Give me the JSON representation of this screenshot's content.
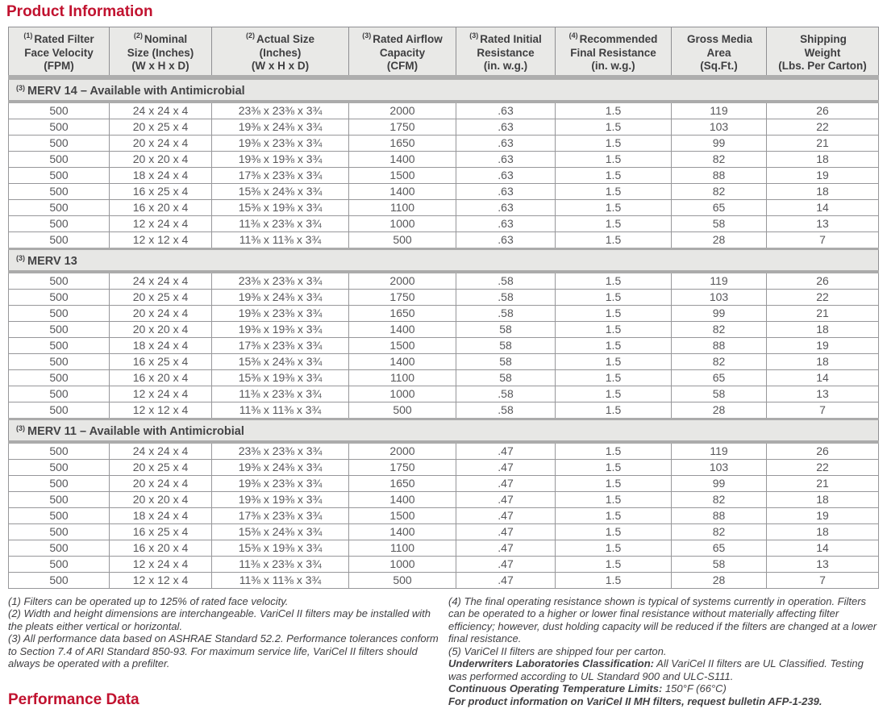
{
  "page": {
    "title": "Product Information",
    "footer_title": "Performance Data"
  },
  "colors": {
    "accent_red": "#c1122f",
    "header_bg": "#e9e9e7",
    "band_bg": "#e7e7e5",
    "shadow_gray": "#aeaeae",
    "border_gray": "#8f8f92",
    "text_gray": "#57575a"
  },
  "table": {
    "columns": [
      {
        "sup": "(1)",
        "lines": [
          "Rated Filter",
          "Face Velocity",
          "(FPM)"
        ]
      },
      {
        "sup": "(2)",
        "lines": [
          "Nominal",
          "Size (Inches)",
          "(W x H x D)"
        ]
      },
      {
        "sup": "(2)",
        "lines": [
          "Actual Size",
          "(Inches)",
          "(W x H x D)"
        ]
      },
      {
        "sup": "(3)",
        "lines": [
          "Rated Airflow",
          "Capacity",
          "(CFM)"
        ]
      },
      {
        "sup": "(3)",
        "lines": [
          "Rated Initial",
          "Resistance",
          "(in. w.g.)"
        ]
      },
      {
        "sup": "(4)",
        "lines": [
          "Recommended",
          "Final Resistance",
          "(in. w.g.)"
        ]
      },
      {
        "sup": "",
        "lines": [
          "Gross Media",
          "Area",
          "(Sq.Ft.)"
        ]
      },
      {
        "sup": "",
        "lines": [
          "Shipping",
          "Weight",
          "(Lbs. Per Carton)"
        ]
      }
    ],
    "sections": [
      {
        "sup": "(3)",
        "title": "MERV 14 – Available with Antimicrobial",
        "rows": [
          [
            "500",
            "24 x 24 x 4",
            "23⅜ x 23⅜ x 3¾",
            "2000",
            ".63",
            "1.5",
            "119",
            "26"
          ],
          [
            "500",
            "20 x 25 x 4",
            "19⅜ x 24⅜ x 3¾",
            "1750",
            ".63",
            "1.5",
            "103",
            "22"
          ],
          [
            "500",
            "20 x 24 x 4",
            "19⅜ x 23⅜ x 3¾",
            "1650",
            ".63",
            "1.5",
            "99",
            "21"
          ],
          [
            "500",
            "20 x 20 x 4",
            "19⅜ x 19⅜ x 3¾",
            "1400",
            ".63",
            "1.5",
            "82",
            "18"
          ],
          [
            "500",
            "18 x 24 x 4",
            "17⅜ x 23⅜ x 3¾",
            "1500",
            ".63",
            "1.5",
            "88",
            "19"
          ],
          [
            "500",
            "16 x 25 x 4",
            "15⅜ x 24⅜ x 3¾",
            "1400",
            ".63",
            "1.5",
            "82",
            "18"
          ],
          [
            "500",
            "16 x 20 x 4",
            "15⅜ x 19⅜ x 3¾",
            "1100",
            ".63",
            "1.5",
            "65",
            "14"
          ],
          [
            "500",
            "12 x 24 x 4",
            "11⅜ x 23⅜ x 3¾",
            "1000",
            ".63",
            "1.5",
            "58",
            "13"
          ],
          [
            "500",
            "12 x 12 x 4",
            "11⅜ x 11⅜ x 3¾",
            "500",
            ".63",
            "1.5",
            "28",
            "7"
          ]
        ]
      },
      {
        "sup": "(3)",
        "title": "MERV 13",
        "rows": [
          [
            "500",
            "24 x 24 x 4",
            "23⅜ x 23⅜ x 3¾",
            "2000",
            ".58",
            "1.5",
            "119",
            "26"
          ],
          [
            "500",
            "20 x 25 x 4",
            "19⅜ x 24⅜ x 3¾",
            "1750",
            ".58",
            "1.5",
            "103",
            "22"
          ],
          [
            "500",
            "20 x 24 x 4",
            "19⅜ x 23⅜ x 3¾",
            "1650",
            ".58",
            "1.5",
            "99",
            "21"
          ],
          [
            "500",
            "20 x 20 x 4",
            "19⅜ x 19⅜ x 3¾",
            "1400",
            "58",
            "1.5",
            "82",
            "18"
          ],
          [
            "500",
            "18 x 24 x 4",
            "17⅜ x 23⅜ x 3¾",
            "1500",
            "58",
            "1.5",
            "88",
            "19"
          ],
          [
            "500",
            "16 x 25 x 4",
            "15⅜ x 24⅜ x 3¾",
            "1400",
            "58",
            "1.5",
            "82",
            "18"
          ],
          [
            "500",
            "16 x 20 x 4",
            "15⅜ x 19⅜ x 3¾",
            "1100",
            "58",
            "1.5",
            "65",
            "14"
          ],
          [
            "500",
            "12 x 24 x 4",
            "11⅜ x 23⅜ x 3¾",
            "1000",
            ".58",
            "1.5",
            "58",
            "13"
          ],
          [
            "500",
            "12 x 12 x 4",
            "11⅜ x 11⅜ x 3¾",
            "500",
            ".58",
            "1.5",
            "28",
            "7"
          ]
        ]
      },
      {
        "sup": "(3)",
        "title": "MERV 11 – Available with Antimicrobial",
        "rows": [
          [
            "500",
            "24 x 24 x 4",
            "23⅜ x 23⅜ x 3¾",
            "2000",
            ".47",
            "1.5",
            "119",
            "26"
          ],
          [
            "500",
            "20 x 25 x 4",
            "19⅜ x 24⅜ x 3¾",
            "1750",
            ".47",
            "1.5",
            "103",
            "22"
          ],
          [
            "500",
            "20 x 24 x 4",
            "19⅜ x 23⅜ x 3¾",
            "1650",
            ".47",
            "1.5",
            "99",
            "21"
          ],
          [
            "500",
            "20 x 20 x 4",
            "19⅜ x 19⅜ x 3¾",
            "1400",
            ".47",
            "1.5",
            "82",
            "18"
          ],
          [
            "500",
            "18 x 24 x 4",
            "17⅜ x 23⅜ x 3¾",
            "1500",
            ".47",
            "1.5",
            "88",
            "19"
          ],
          [
            "500",
            "16 x 25 x 4",
            "15⅜ x 24⅜ x 3¾",
            "1400",
            ".47",
            "1.5",
            "82",
            "18"
          ],
          [
            "500",
            "16 x 20 x 4",
            "15⅜ x 19⅜ x 3¾",
            "1100",
            ".47",
            "1.5",
            "65",
            "14"
          ],
          [
            "500",
            "12 x 24 x 4",
            "11⅜ x 23⅜ x 3¾",
            "1000",
            ".47",
            "1.5",
            "58",
            "13"
          ],
          [
            "500",
            "12 x 12 x 4",
            "11⅜ x 11⅜ x 3¾",
            "500",
            ".47",
            "1.5",
            "28",
            "7"
          ]
        ]
      }
    ]
  },
  "footnotes": {
    "left": [
      "(1) Filters can be operated up to 125% of rated face velocity.",
      "(2) Width and height dimensions are interchangeable. VariCel II filters may be installed with the pleats either vertical or horizontal.",
      "(3) All performance data based on ASHRAE Standard 52.2. Performance tolerances conform to Section 7.4 of ARI Standard 850-93. For maximum service life, VariCel II filters should always be operated with a prefilter."
    ],
    "right": [
      {
        "bold": "",
        "text": "(4) The final operating resistance shown is typical of systems currently in operation. Filters can be operated to a higher or lower final resistance without materially affecting filter efficiency; however, dust holding capacity will be reduced if the filters are changed at a lower final resistance."
      },
      {
        "bold": "",
        "text": "(5) VariCel II filters are shipped four per carton."
      },
      {
        "bold": "Underwriters Laboratories Classification:",
        "text": " All VariCel II filters are UL Classified. Testing was performed according to UL Standard 900 and ULC-S111."
      },
      {
        "bold": "Continuous Operating Temperature Limits:",
        "text": " 150°F (66°C)"
      },
      {
        "bold": "For product information on VariCel II MH filters, request bulletin AFP-1-239.",
        "text": ""
      }
    ]
  }
}
